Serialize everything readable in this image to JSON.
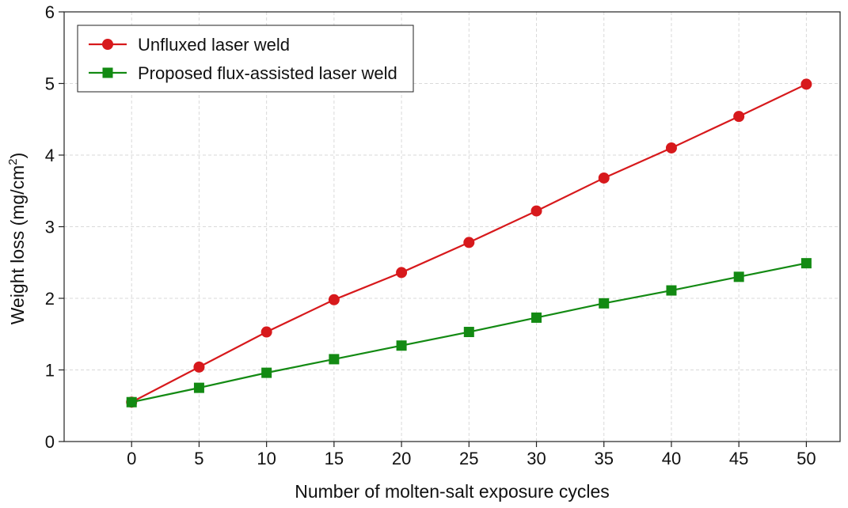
{
  "chart_data": {
    "type": "line",
    "title": "",
    "xlabel": "Number of molten-salt exposure cycles",
    "ylabel_main": "Weight loss (mg/cm",
    "ylabel_sup": "2",
    "ylabel_close": ")",
    "xlim": [
      -5,
      52.5
    ],
    "ylim": [
      0,
      6
    ],
    "xticks": [
      0,
      5,
      10,
      15,
      20,
      25,
      30,
      35,
      40,
      45,
      50
    ],
    "yticks": [
      0,
      1,
      2,
      3,
      4,
      5,
      6
    ],
    "grid": true,
    "legend_position": "top-left",
    "x": [
      0,
      5,
      10,
      15,
      20,
      25,
      30,
      35,
      40,
      45,
      50
    ],
    "series": [
      {
        "name": "Unfluxed laser weld",
        "color": "#d7191c",
        "marker": "circle",
        "values": [
          0.55,
          1.04,
          1.53,
          1.98,
          2.36,
          2.78,
          3.22,
          3.68,
          4.1,
          4.54,
          4.99
        ]
      },
      {
        "name": "Proposed flux-assisted laser weld",
        "color": "#138a13",
        "marker": "square",
        "values": [
          0.55,
          0.75,
          0.96,
          1.15,
          1.34,
          1.53,
          1.73,
          1.93,
          2.11,
          2.3,
          2.49
        ]
      }
    ]
  }
}
